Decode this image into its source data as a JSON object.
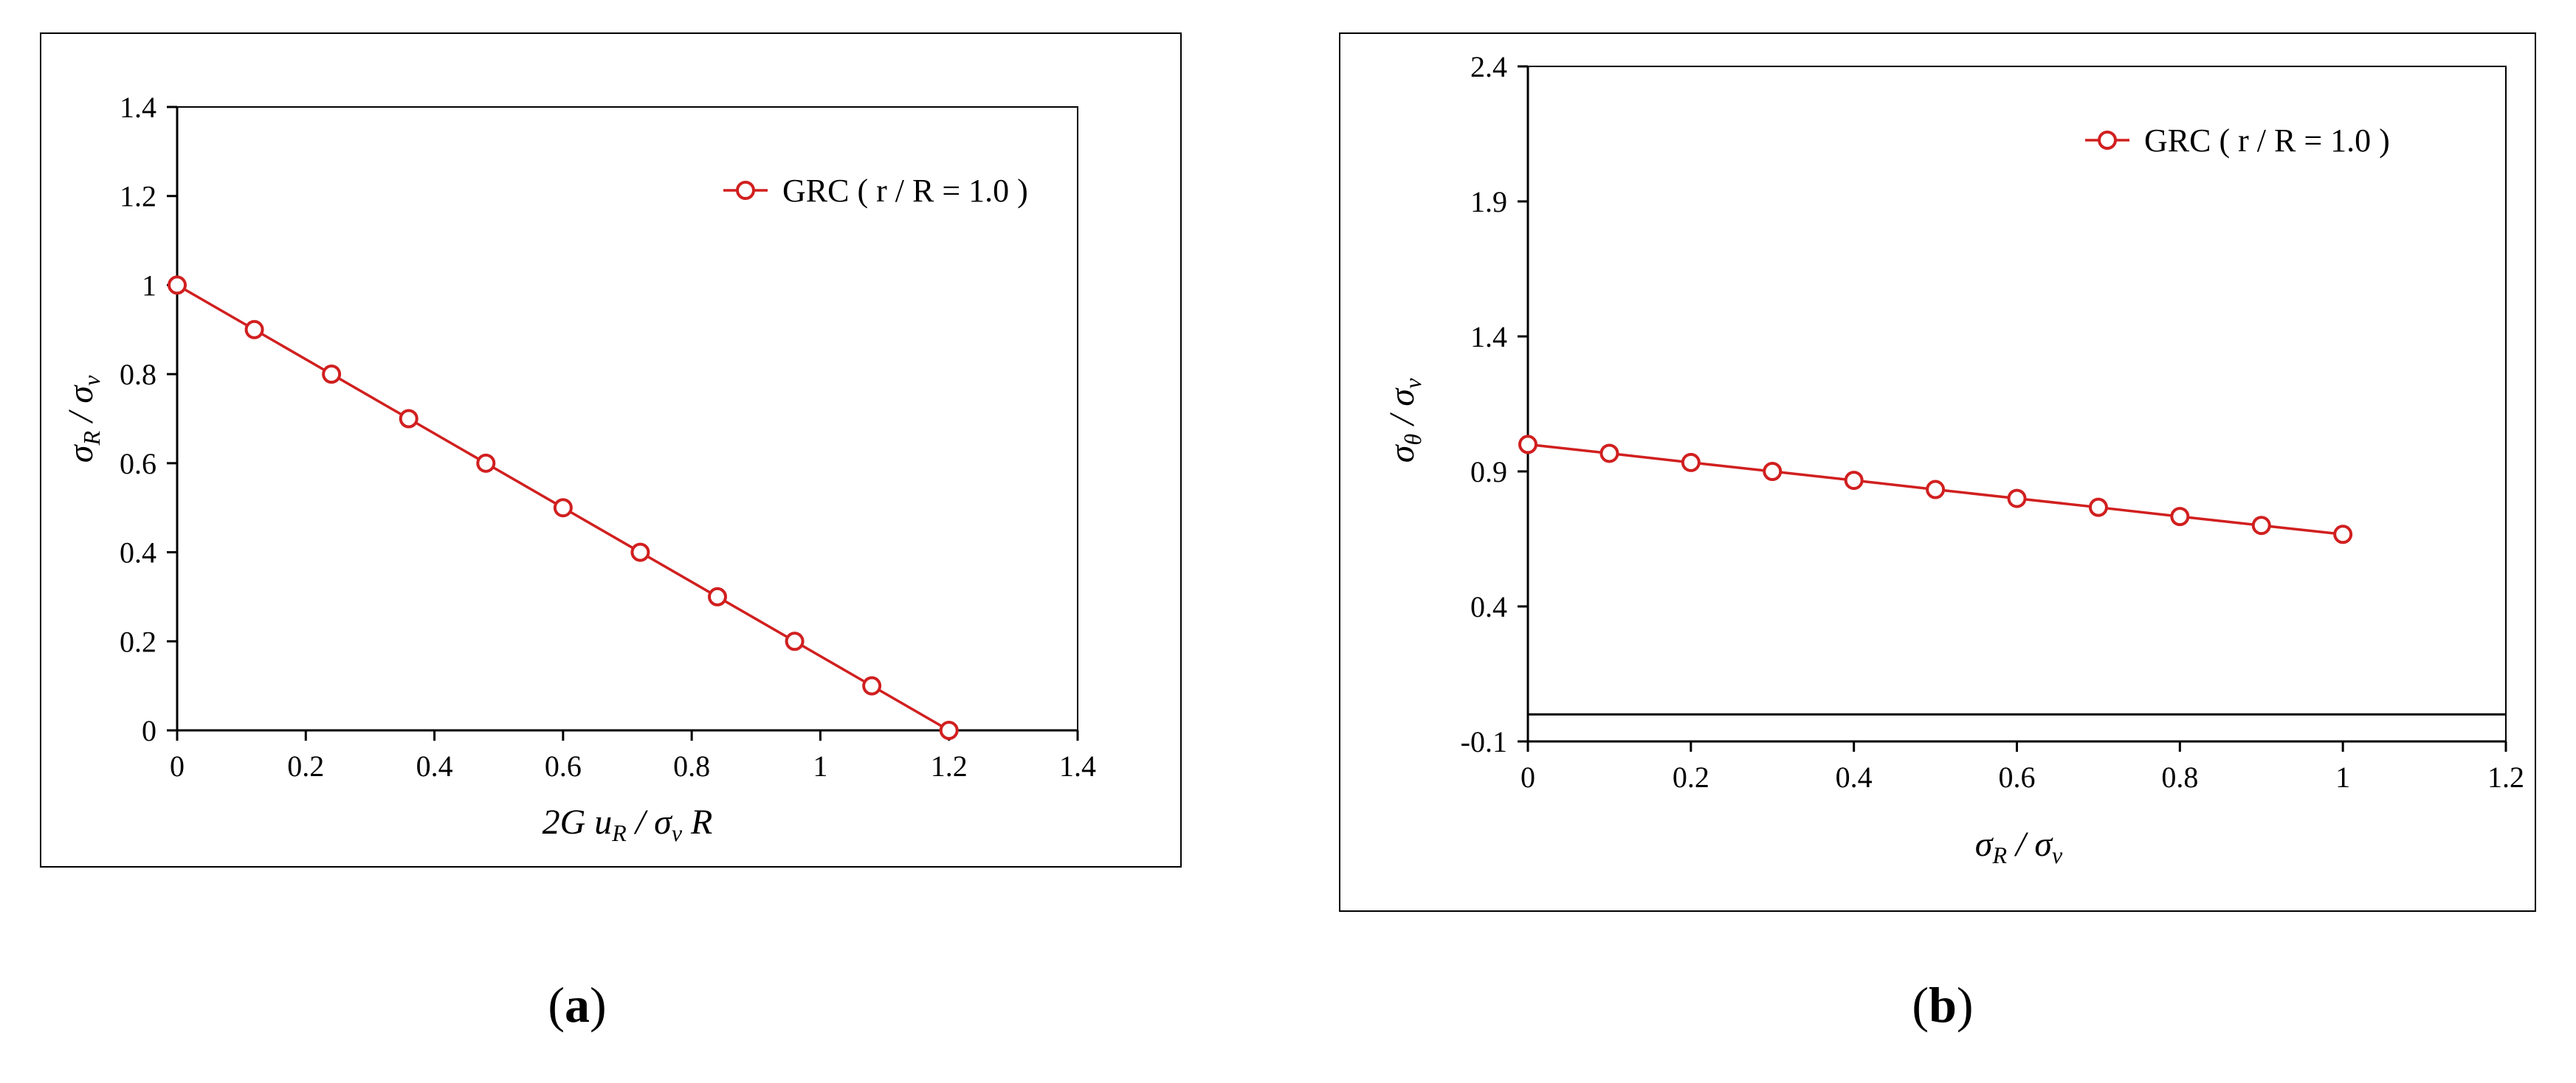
{
  "chart_data": [
    {
      "type": "line",
      "panel": "a",
      "xlim": [
        0,
        1.4
      ],
      "ylim": [
        0,
        1.4
      ],
      "xticks": [
        "0",
        "0.2",
        "0.4",
        "0.6",
        "0.8",
        "1",
        "1.2",
        "1.4"
      ],
      "yticks": [
        "0",
        "0.2",
        "0.4",
        "0.6",
        "0.8",
        "1",
        "1.2",
        "1.4"
      ],
      "xlabel": "2G uR / σv R",
      "ylabel": "σR / σv",
      "grid": false,
      "legend_position": "top-right",
      "series": [
        {
          "name": "GRC ( r / R = 1.0 )",
          "color": "#d11f1f",
          "x": [
            0,
            0.12,
            0.24,
            0.36,
            0.48,
            0.6,
            0.72,
            0.84,
            0.96,
            1.08,
            1.2
          ],
          "y": [
            1.0,
            0.9,
            0.8,
            0.7,
            0.6,
            0.5,
            0.4,
            0.3,
            0.2,
            0.1,
            0.0
          ]
        }
      ]
    },
    {
      "type": "line",
      "panel": "b",
      "xlim": [
        0,
        1.2
      ],
      "ylim": [
        -0.1,
        2.4
      ],
      "xticks": [
        "0",
        "0.2",
        "0.4",
        "0.6",
        "0.8",
        "1",
        "1.2"
      ],
      "yticks": [
        "-0.1",
        "0.4",
        "0.9",
        "1.4",
        "1.9",
        "2.4"
      ],
      "xlabel": "σR / σv",
      "ylabel": "σθ / σv",
      "grid": false,
      "legend_position": "top-right",
      "series": [
        {
          "name": "GRC ( r / R = 1.0 )",
          "color": "#d11f1f",
          "x": [
            0,
            0.1,
            0.2,
            0.3,
            0.4,
            0.5,
            0.6,
            0.7,
            0.8,
            0.9,
            1.0
          ],
          "y": [
            1.0,
            0.967,
            0.933,
            0.9,
            0.867,
            0.833,
            0.8,
            0.767,
            0.733,
            0.7,
            0.667
          ]
        }
      ]
    }
  ],
  "captions": {
    "a": "a",
    "b": "b"
  }
}
